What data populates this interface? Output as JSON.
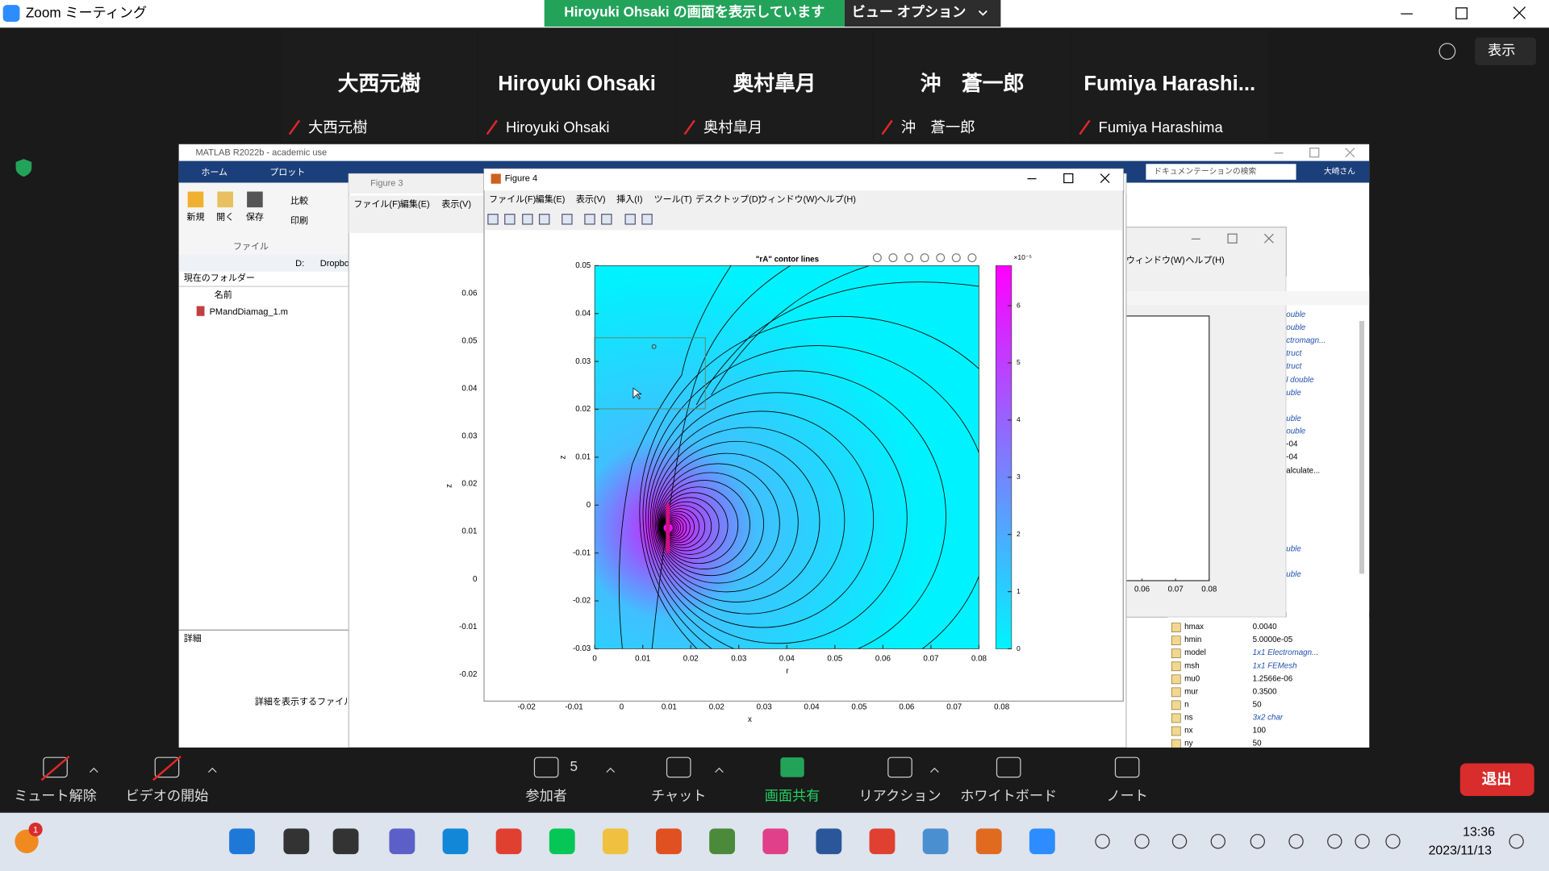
{
  "zoom": {
    "title": "Zoom ミーティング",
    "share_banner": "Hiroyuki Ohsaki の画面を表示しています",
    "view_options": "ビュー オプション",
    "view_button": "表示",
    "participants": [
      {
        "name": "大西元樹",
        "label": "大西元樹"
      },
      {
        "name": "Hiroyuki Ohsaki",
        "label": "Hiroyuki Ohsaki"
      },
      {
        "name": "奥村皐月",
        "label": "奥村皐月"
      },
      {
        "name": "沖　蒼一郎",
        "label": "沖　蒼一郎"
      },
      {
        "name": "Fumiya  Harashi...",
        "label": "Fumiya Harashima"
      }
    ],
    "toolbar": {
      "mute": "ミュート解除",
      "video": "ビデオの開始",
      "participants": "参加者",
      "participant_count": 5,
      "chat": "チャット",
      "share": "画面共有",
      "reactions": "リアクション",
      "whiteboard": "ホワイトボード",
      "notes": "ノート",
      "leave": "退出"
    }
  },
  "matlab": {
    "title": "MATLAB R2022b - academic use",
    "tabs": [
      "ホーム",
      "プロット"
    ],
    "toolstrip": [
      "新規",
      "開く",
      "保存",
      "比較",
      "印刷"
    ],
    "section": "ファイル",
    "path": [
      "D:",
      "Dropbo"
    ],
    "folder_panel": "現在のフォルダー",
    "name_column": "名前",
    "files": [
      "PMandDiamag_1.m"
    ],
    "details": "詳細",
    "details_hint": "詳細を表示するファイルを選",
    "search": "ドキュメンテーションの検索",
    "user": "大崎さん",
    "workspace_partial": [
      "ouble",
      "ouble",
      "ctromagn...",
      "truct",
      "truct",
      "l double",
      "uble",
      "uble",
      "ouble",
      "-04",
      "-04",
      "alculate...",
      "uble",
      "uble"
    ],
    "workspace": [
      {
        "name": "hmax",
        "value": "0.0040"
      },
      {
        "name": "hmin",
        "value": "5.0000e-05"
      },
      {
        "name": "model",
        "value": "1x1 Electromagn..."
      },
      {
        "name": "msh",
        "value": "1x1 FEMesh"
      },
      {
        "name": "mu0",
        "value": "1.2566e-06"
      },
      {
        "name": "mur",
        "value": "0.3500"
      },
      {
        "name": "n",
        "value": "50"
      },
      {
        "name": "ns",
        "value": "3x2 char"
      },
      {
        "name": "nx",
        "value": "100"
      },
      {
        "name": "ny",
        "value": "50"
      }
    ]
  },
  "figure3": {
    "title": "Figure 3",
    "menus": [
      "ファイル(F)",
      "編集(E)",
      "表示(V)"
    ],
    "yticks": [
      0.06,
      0.05,
      0.04,
      0.03,
      0.02,
      0.01,
      0,
      -0.01,
      -0.02
    ],
    "xticks": [
      -0.02,
      -0.01,
      0,
      0.01,
      0.02,
      0.03,
      0.04,
      0.05,
      0.06,
      0.07,
      0.08
    ],
    "xlabel": "x",
    "ylabel": "z"
  },
  "figure4": {
    "title": "Figure 4",
    "menus": [
      "ファイル(F)",
      "編集(E)",
      "表示(V)",
      "挿入(I)",
      "ツール(T)",
      "デスクトップ(D)",
      "ウィンドウ(W)",
      "ヘルプ(H)"
    ],
    "plot": {
      "title": "\"rA\" contor lines",
      "xlim": [
        0,
        0.08
      ],
      "ylim": [
        -0.03,
        0.05
      ],
      "xticks": [
        0,
        0.01,
        0.02,
        0.03,
        0.04,
        0.05,
        0.06,
        0.07,
        0.08
      ],
      "yticks": [
        0.05,
        0.04,
        0.03,
        0.02,
        0.01,
        0,
        -0.01,
        -0.02,
        -0.03
      ],
      "xlabel": "r",
      "ylabel": "z",
      "colorbar": {
        "lim": [
          0,
          6.7
        ],
        "ticks": [
          0,
          1,
          2,
          3,
          4,
          5,
          6
        ],
        "multiplier": "×10⁻⁵",
        "colors": [
          "#00f4ff",
          "#ff00ff"
        ]
      }
    }
  },
  "figure_back": {
    "menus": [
      "ウィンドウ(W)",
      "ヘルプ(H)"
    ],
    "xticks": [
      0.06,
      0.07,
      0.08
    ]
  },
  "taskbar": {
    "time": "13:36",
    "date": "2023/11/13",
    "notification_count": 1
  }
}
